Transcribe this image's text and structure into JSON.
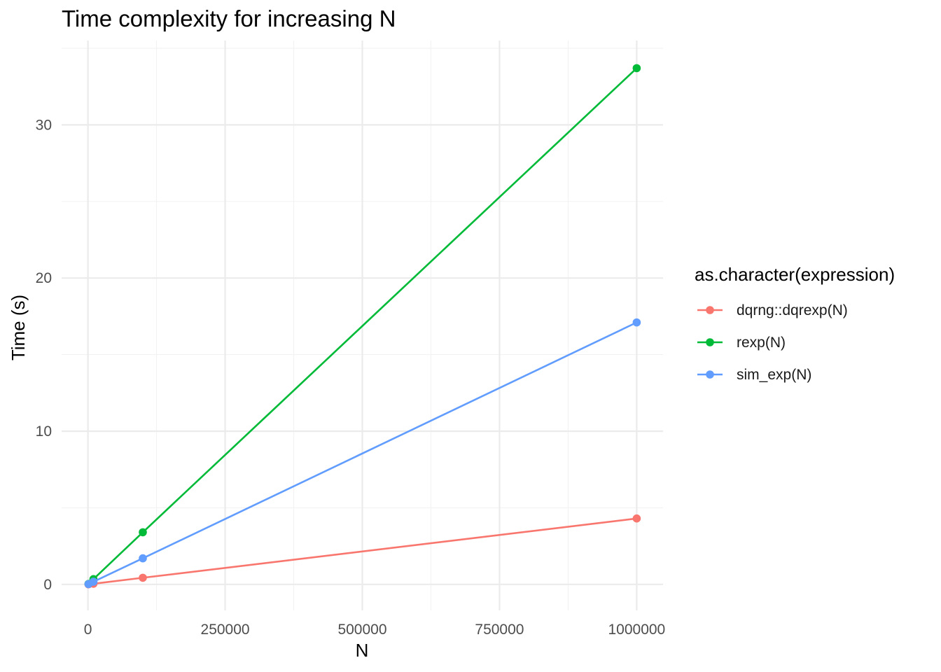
{
  "chart_data": {
    "type": "line",
    "title": "Time complexity for increasing N",
    "xlabel": "N",
    "ylabel": "Time (s)",
    "x": [
      1000,
      10000,
      100000,
      1000000
    ],
    "xlim": [
      -48000,
      1048000
    ],
    "ylim": [
      -1.7,
      35.5
    ],
    "x_ticks": [
      0,
      250000,
      500000,
      750000,
      1000000
    ],
    "x_tick_labels": [
      "0",
      "250000",
      "500000",
      "750000",
      "1000000"
    ],
    "y_ticks": [
      0,
      10,
      20,
      30
    ],
    "y_tick_labels": [
      "0",
      "10",
      "20",
      "30"
    ],
    "grid": true,
    "legend_title": "as.character(expression)",
    "legend_position": "right",
    "series": [
      {
        "name": "dqrng::dqrexp(N)",
        "color": "#F8766D",
        "values": [
          0.004,
          0.04,
          0.43,
          4.3
        ]
      },
      {
        "name": "rexp(N)",
        "color": "#00BA38",
        "values": [
          0.03,
          0.34,
          3.4,
          33.7
        ]
      },
      {
        "name": "sim_exp(N)",
        "color": "#619CFF",
        "values": [
          0.017,
          0.17,
          1.7,
          17.1
        ]
      }
    ]
  }
}
